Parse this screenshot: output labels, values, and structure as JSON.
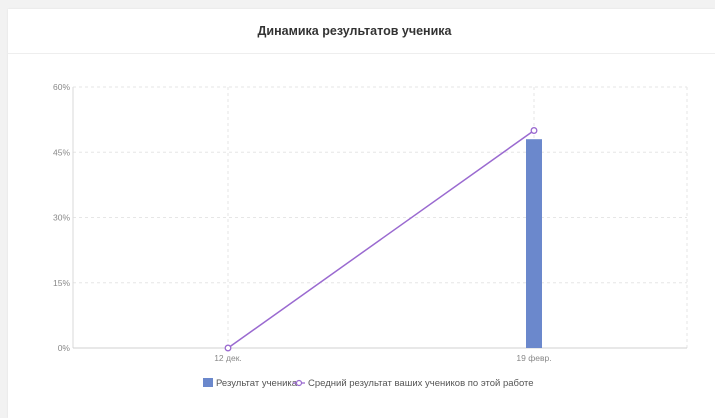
{
  "title": "Динамика результатов ученика",
  "chart_data": {
    "type": "bar",
    "categories": [
      "12 дек.",
      "19 февр."
    ],
    "y_ticks": [
      "0%",
      "15%",
      "30%",
      "45%",
      "60%"
    ],
    "ylim": [
      0,
      60
    ],
    "grid": true,
    "legend_position": "bottom",
    "series": [
      {
        "name": "Результат ученика",
        "type": "bar",
        "color": "#6b88cc",
        "values": [
          0,
          48
        ]
      },
      {
        "name": "Средний результат ваших учеников по этой работе",
        "type": "line",
        "color": "#9a6ad0",
        "values": [
          0,
          50
        ]
      }
    ]
  }
}
